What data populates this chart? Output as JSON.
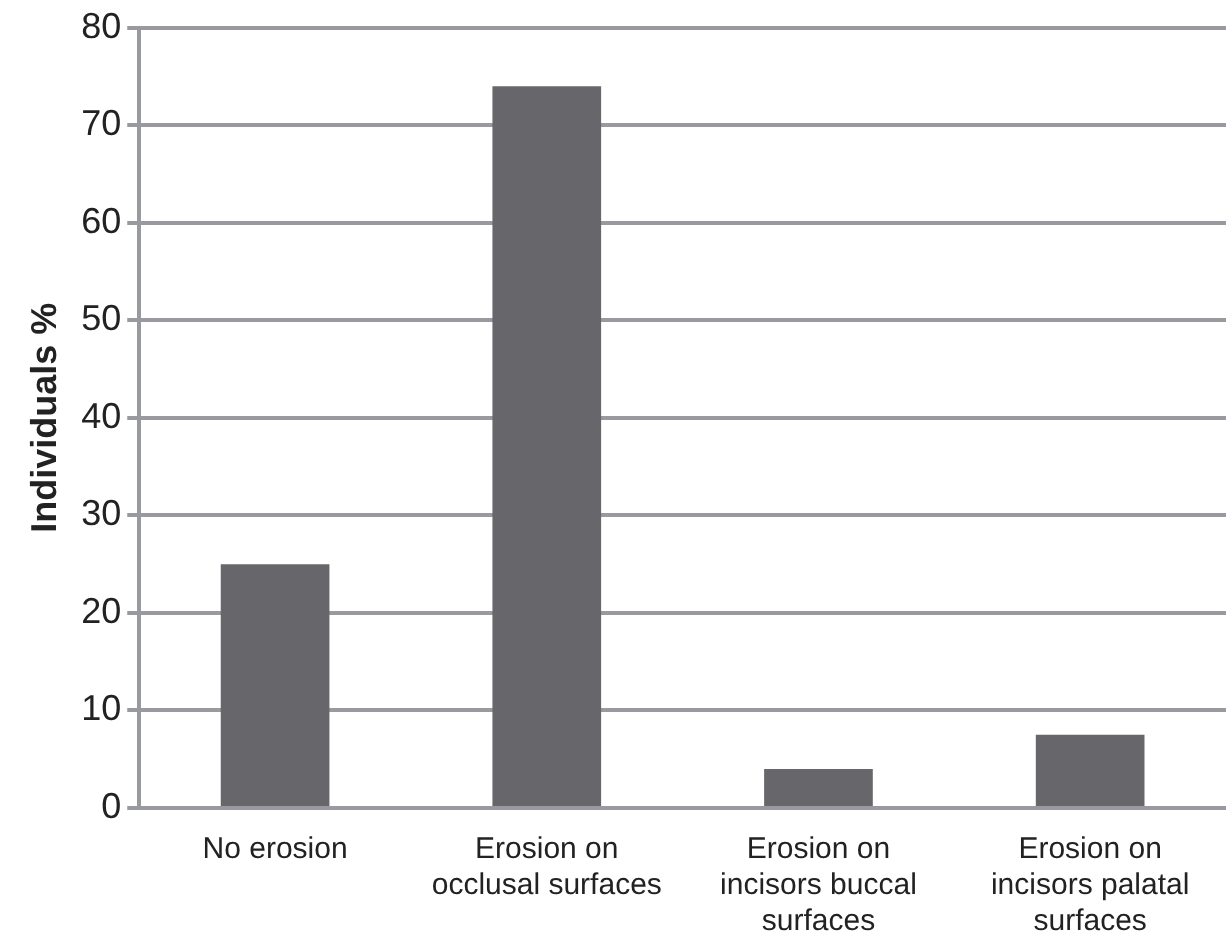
{
  "chart_data": {
    "type": "bar",
    "ylabel": "Individuals %",
    "categories": [
      "No erosion",
      "Erosion on occlusal surfaces",
      "Erosion on incisors buccal surfaces",
      "Erosion on incisors palatal surfaces"
    ],
    "values": [
      25,
      74,
      4,
      7.5
    ],
    "color": "#67676b",
    "ylim": [
      0,
      80
    ],
    "yticks": [
      0,
      10,
      20,
      30,
      40,
      50,
      60,
      70,
      80
    ],
    "grid": "y"
  }
}
